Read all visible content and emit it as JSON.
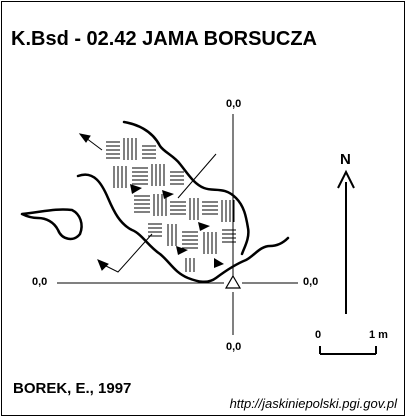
{
  "header": {
    "title": "K.Bsd - 02.42  JAMA BORSUCZA"
  },
  "grid": {
    "top": "0,0",
    "left": "0,0",
    "right": "0,0",
    "bottom": "0,0"
  },
  "legend": {
    "north": "N",
    "scale_start": "0",
    "scale_end": "1 m"
  },
  "footer": {
    "author": "BOREK, E., 1997",
    "source": "http://jaskiniepolski.pgi.gov.pl"
  },
  "colors": {
    "ink": "#000000",
    "paper": "#ffffff"
  },
  "icons": {
    "north_arrow": "arrow-up-icon",
    "entrance": "triangle-icon"
  }
}
